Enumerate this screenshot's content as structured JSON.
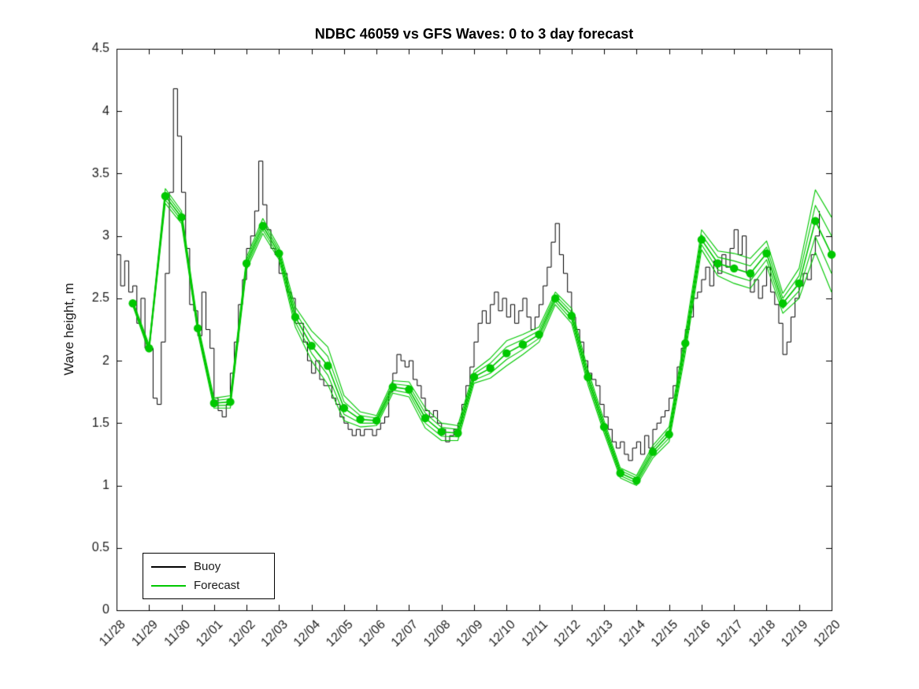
{
  "chart_data": {
    "type": "line",
    "title": "NDBC 46059 vs GFS Waves: 0 to 3 day forecast",
    "xlabel": "",
    "ylabel": "Wave height, m",
    "xlim": [
      0,
      22
    ],
    "ylim": [
      0,
      4.5
    ],
    "grid": false,
    "yticks": [
      0,
      0.5,
      1,
      1.5,
      2,
      2.5,
      3,
      3.5,
      4,
      4.5
    ],
    "y_tick_labels": [
      "0",
      "0.5",
      "1",
      "1.5",
      "2",
      "2.5",
      "3",
      "3.5",
      "4",
      "4.5"
    ],
    "x_tick_positions": [
      0,
      1,
      2,
      3,
      4,
      5,
      6,
      7,
      8,
      9,
      10,
      11,
      12,
      13,
      14,
      15,
      16,
      17,
      18,
      19,
      20,
      21,
      22
    ],
    "x_tick_labels": [
      "11/28",
      "11/29",
      "11/30",
      "12/01",
      "12/02",
      "12/03",
      "12/04",
      "12/05",
      "12/06",
      "12/07",
      "12/08",
      "12/09",
      "12/10",
      "12/11",
      "12/12",
      "12/13",
      "12/14",
      "12/15",
      "12/16",
      "12/17",
      "12/18",
      "12/19",
      "12/20"
    ],
    "legend": {
      "position": "lower-left",
      "entries": [
        {
          "label": "Buoy",
          "color": "#000000"
        },
        {
          "label": "Forecast",
          "color": "#00c800"
        }
      ]
    },
    "series": [
      {
        "name": "Buoy",
        "type": "step",
        "color": "#000000",
        "t_start": 0,
        "t_step": 0.125,
        "values": [
          2.85,
          2.6,
          2.8,
          2.55,
          2.6,
          2.3,
          2.5,
          2.1,
          2.1,
          1.7,
          1.65,
          2.15,
          2.7,
          3.35,
          4.18,
          3.8,
          3.35,
          2.9,
          2.45,
          2.4,
          2.2,
          2.55,
          2.25,
          2.1,
          1.7,
          1.6,
          1.55,
          1.65,
          1.9,
          2.15,
          2.45,
          2.65,
          2.9,
          3.0,
          3.2,
          3.6,
          3.25,
          3.05,
          2.9,
          2.85,
          2.7,
          2.7,
          2.55,
          2.5,
          2.3,
          2.3,
          2.15,
          2.0,
          1.9,
          2.0,
          1.85,
          1.8,
          1.8,
          1.7,
          1.65,
          1.55,
          1.5,
          1.45,
          1.4,
          1.45,
          1.4,
          1.45,
          1.45,
          1.4,
          1.45,
          1.5,
          1.55,
          1.75,
          1.9,
          2.05,
          2.0,
          1.95,
          2.0,
          1.85,
          1.8,
          1.7,
          1.6,
          1.55,
          1.6,
          1.5,
          1.45,
          1.35,
          1.4,
          1.45,
          1.5,
          1.65,
          1.8,
          1.95,
          2.15,
          2.3,
          2.4,
          2.3,
          2.45,
          2.55,
          2.4,
          2.5,
          2.35,
          2.45,
          2.3,
          2.4,
          2.5,
          2.35,
          2.25,
          2.35,
          2.45,
          2.6,
          2.75,
          2.95,
          3.1,
          2.85,
          2.7,
          2.55,
          2.35,
          2.25,
          2.15,
          2.0,
          1.9,
          1.85,
          1.8,
          1.65,
          1.55,
          1.45,
          1.35,
          1.3,
          1.35,
          1.25,
          1.2,
          1.3,
          1.35,
          1.25,
          1.4,
          1.3,
          1.45,
          1.5,
          1.55,
          1.6,
          1.7,
          1.8,
          1.95,
          2.1,
          2.25,
          2.35,
          2.5,
          2.55,
          2.65,
          2.75,
          2.6,
          2.8,
          2.7,
          2.85,
          2.75,
          2.9,
          3.05,
          2.85,
          3.0,
          2.7,
          2.55,
          2.65,
          2.5,
          2.6,
          2.75,
          2.55,
          2.45,
          2.3,
          2.05,
          2.15,
          2.35,
          2.5,
          2.6,
          2.7,
          2.65,
          2.85,
          3.0,
          3.2
        ]
      },
      {
        "name": "Forecast",
        "type": "line-fan",
        "color": "#00c800",
        "marker": "circle",
        "marker_size": 5.2,
        "fan_factors": [
          -1,
          -0.5,
          0,
          0.5,
          1
        ],
        "t_start": 0.5,
        "t_step": 0.5,
        "values": [
          2.46,
          2.1,
          3.32,
          3.15,
          2.26,
          1.66,
          1.67,
          2.78,
          3.08,
          2.86,
          2.35,
          2.12,
          1.96,
          1.62,
          1.53,
          1.52,
          1.79,
          1.77,
          1.54,
          1.43,
          1.42,
          1.87,
          1.94,
          2.06,
          2.13,
          2.21,
          2.5,
          2.36,
          1.87,
          1.47,
          1.1,
          1.04,
          1.27,
          1.41,
          2.14,
          2.97,
          2.78,
          2.74,
          2.7,
          2.86,
          2.46,
          2.62,
          3.12,
          2.85
        ],
        "spread": [
          0.02,
          0.03,
          0.06,
          0.05,
          0.04,
          0.04,
          0.05,
          0.05,
          0.06,
          0.05,
          0.08,
          0.12,
          0.15,
          0.1,
          0.06,
          0.04,
          0.05,
          0.06,
          0.08,
          0.07,
          0.06,
          0.05,
          0.08,
          0.1,
          0.08,
          0.06,
          0.05,
          0.06,
          0.06,
          0.05,
          0.04,
          0.04,
          0.05,
          0.06,
          0.08,
          0.08,
          0.1,
          0.12,
          0.12,
          0.1,
          0.08,
          0.12,
          0.25,
          0.3
        ]
      }
    ]
  }
}
